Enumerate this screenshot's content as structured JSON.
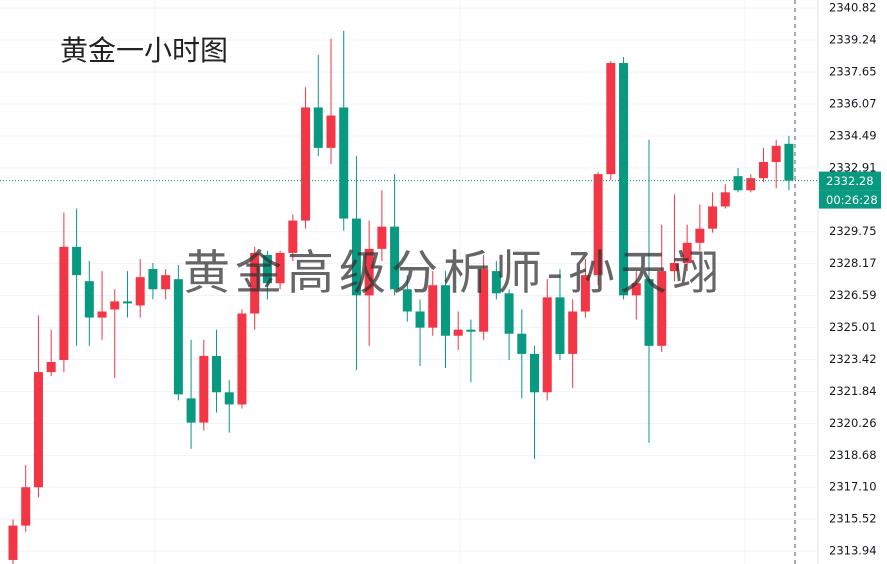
{
  "chart_data": {
    "type": "candlestick",
    "title": "黄金一小时图",
    "watermark": "黄金高级分析师-孙天翊",
    "up_color": "#f23645",
    "down_color": "#089981",
    "last_price": 2332.28,
    "countdown": "00:26:28",
    "grid": true,
    "ylim": [
      2313.3,
      2341.22
    ],
    "yticks": [
      2340.82,
      2339.24,
      2337.65,
      2336.07,
      2334.49,
      2332.91,
      2329.75,
      2328.17,
      2326.59,
      2325.01,
      2323.42,
      2321.84,
      2320.26,
      2318.68,
      {
        "value": 2317.1,
        "label": "2317.10"
      },
      2315.52,
      2313.94
    ],
    "open": [
      2313.5,
      2315.2,
      2317.1,
      2322.8,
      2323.4,
      2329.0,
      2327.3,
      2325.5,
      2325.9,
      2326.3,
      2326.1,
      2327.9,
      2326.9,
      2327.4,
      2321.5,
      2320.3,
      2323.6,
      2321.8,
      2321.2,
      2325.7,
      2328.6,
      2327.2,
      2328.7,
      2330.3,
      2335.9,
      2333.9,
      2335.9,
      2330.4,
      2326.6,
      2328.9,
      2330.0,
      2326.9,
      2325.8,
      2325.0,
      2327.1,
      2324.6,
      2324.9,
      2324.8,
      2327.8,
      2326.7,
      2324.7,
      2323.7,
      2321.8,
      2326.5,
      2323.7,
      2325.8,
      2327.6,
      2332.6,
      2338.1,
      2326.6,
      2327.4,
      2324.1,
      2327.8,
      2328.2,
      2329.2,
      2329.9,
      2331.0,
      2332.5,
      2331.8,
      2332.4,
      2333.2,
      2334.1
    ],
    "high": [
      2315.5,
      2318.2,
      2325.6,
      2324.9,
      2330.7,
      2330.9,
      2328.3,
      2327.8,
      2326.9,
      2327.8,
      2328.4,
      2328.2,
      2327.9,
      2328.1,
      2324.4,
      2324.4,
      2324.9,
      2322.4,
      2325.9,
      2329.0,
      2328.8,
      2328.8,
      2330.6,
      2336.9,
      2338.5,
      2339.3,
      2339.7,
      2333.5,
      2330.3,
      2331.8,
      2332.6,
      2327.6,
      2326.4,
      2327.8,
      2327.8,
      2325.8,
      2325.4,
      2328.6,
      2328.3,
      2326.9,
      2325.9,
      2324.1,
      2327.4,
      2327.9,
      2326.4,
      2328.4,
      2332.7,
      2338.2,
      2338.4,
      2327.8,
      2334.3,
      2330.1,
      2331.6,
      2330.1,
      2331.1,
      2331.7,
      2332.1,
      2332.9,
      2332.6,
      2333.9,
      2334.3,
      2334.5
    ],
    "low": [
      2313.3,
      2314.9,
      2316.6,
      2322.6,
      2322.8,
      2324.1,
      2324.1,
      2324.4,
      2322.5,
      2325.5,
      2325.5,
      2326.4,
      2326.4,
      2321.4,
      2319.0,
      2319.9,
      2320.8,
      2319.8,
      2321.0,
      2324.9,
      2326.4,
      2326.9,
      2328.3,
      2329.9,
      2333.5,
      2333.1,
      2329.8,
      2322.9,
      2324.1,
      2328.3,
      2326.6,
      2325.3,
      2323.1,
      2324.6,
      2323.0,
      2323.9,
      2322.3,
      2324.4,
      2326.4,
      2323.4,
      2321.5,
      2318.5,
      2321.4,
      2323.4,
      2322.0,
      2325.5,
      2327.1,
      2332.3,
      2326.4,
      2325.4,
      2319.3,
      2323.8,
      2327.3,
      2327.8,
      2328.8,
      2329.7,
      2330.9,
      2331.7,
      2331.7,
      2332.2,
      2331.9,
      2331.8
    ],
    "close": [
      2315.2,
      2317.1,
      2322.8,
      2323.3,
      2329.0,
      2327.6,
      2325.5,
      2325.8,
      2326.3,
      2326.2,
      2327.5,
      2326.9,
      2327.6,
      2321.7,
      2320.3,
      2323.6,
      2321.8,
      2321.2,
      2325.7,
      2328.7,
      2327.2,
      2328.7,
      2330.3,
      2335.9,
      2333.9,
      2335.5,
      2330.4,
      2326.6,
      2328.9,
      2330.0,
      2326.9,
      2325.8,
      2325.0,
      2327.1,
      2324.6,
      2324.9,
      2324.8,
      2327.9,
      2326.7,
      2324.7,
      2323.7,
      2321.8,
      2326.5,
      2323.7,
      2325.8,
      2327.6,
      2332.6,
      2338.1,
      2326.6,
      2327.2,
      2324.1,
      2327.8,
      2328.2,
      2329.2,
      2329.9,
      2331.0,
      2331.7,
      2331.8,
      2332.4,
      2333.2,
      2334.0,
      2332.28
    ]
  }
}
